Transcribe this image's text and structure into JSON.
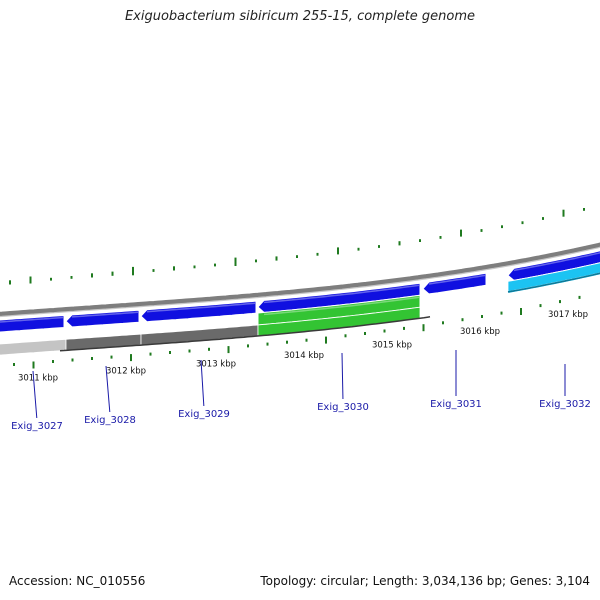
{
  "title": "Exiguobacterium sibiricum 255-15, complete genome",
  "accession_text": "Accession: NC_010556",
  "summary_text": "Topology: circular; Length: 3,034,136 bp; Genes: 3,104",
  "colors": {
    "backbone": "#8a8a8a",
    "gene_blue": "#1010e0",
    "gene_green": "#33c433",
    "gene_cyan": "#1cc3f2",
    "gc_light": "#c4c4c4",
    "gc_dark": "#6a6a6a",
    "skew": "#1f7a1f",
    "label": "#1a1aa8"
  },
  "ticks": [
    {
      "label": "3011 kbp"
    },
    {
      "label": "3012 kbp"
    },
    {
      "label": "3013 kbp"
    },
    {
      "label": "3014 kbp"
    },
    {
      "label": "3015 kbp"
    },
    {
      "label": "3016 kbp"
    },
    {
      "label": "3017 kbp"
    }
  ],
  "genes": [
    {
      "name": "Exig_3027"
    },
    {
      "name": "Exig_3028"
    },
    {
      "name": "Exig_3029"
    },
    {
      "name": "Exig_3030"
    },
    {
      "name": "Exig_3031"
    },
    {
      "name": "Exig_3032"
    }
  ]
}
